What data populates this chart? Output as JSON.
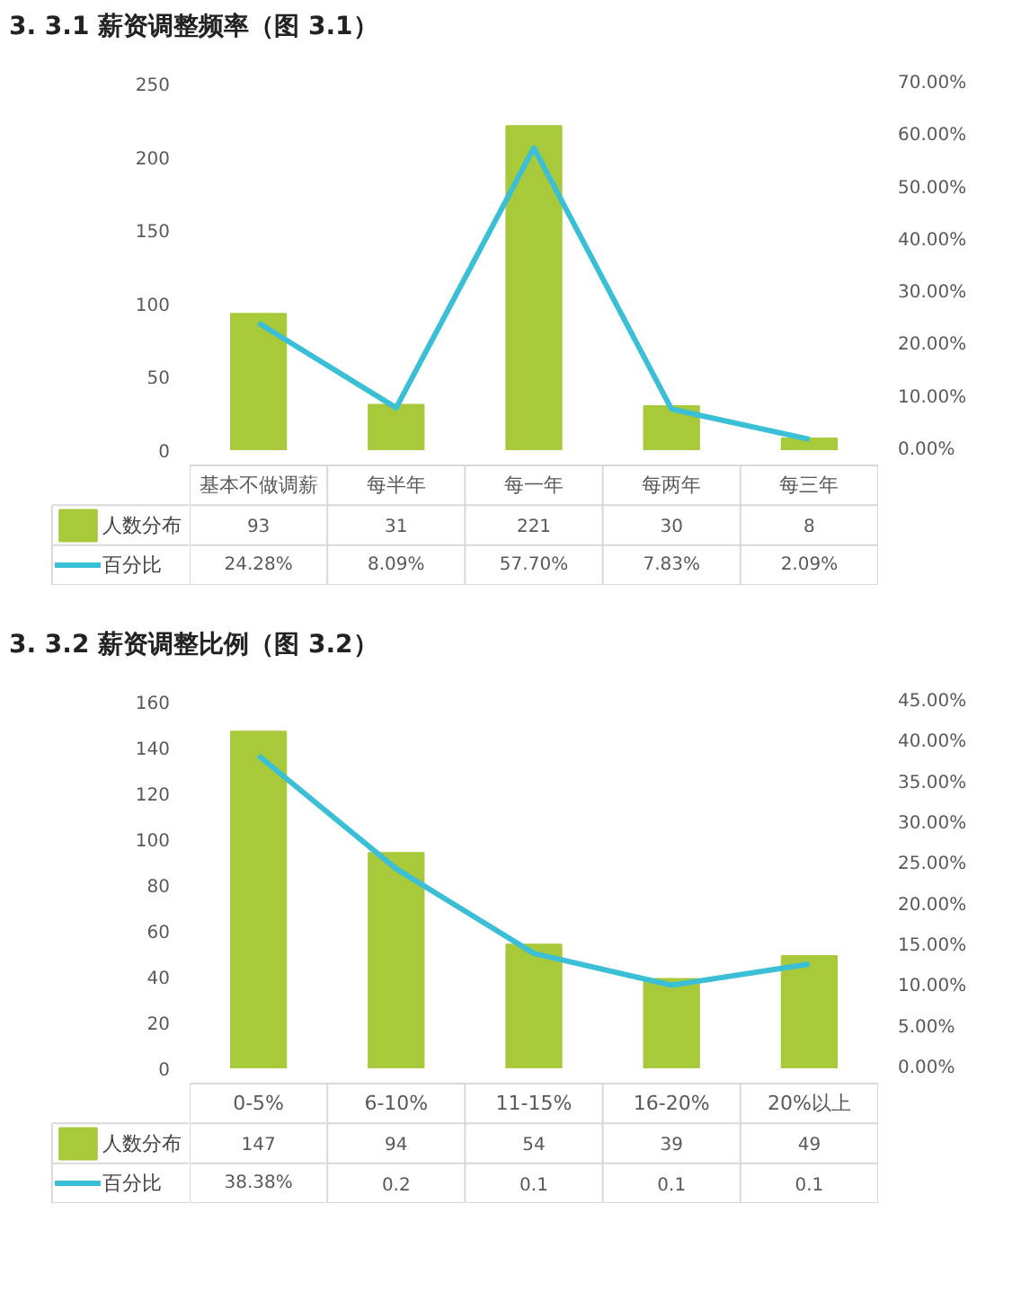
{
  "chart_data": [
    {
      "type": "bar",
      "title": "3. 3.1 薪资调整频率（图 3.1）",
      "categories": [
        "基本不做调薪",
        "每半年",
        "每一年",
        "每两年",
        "每三年"
      ],
      "legend": "bottom left",
      "series": [
        {
          "name": "人数分布",
          "color": "#a8c93a",
          "values": [
            93,
            31,
            221,
            30,
            8
          ],
          "value_labels": [
            "93",
            "31",
            "221",
            "30",
            "8"
          ]
        },
        {
          "name": "百分比",
          "type": "line",
          "axis": "y2",
          "color": "#3bbfd6",
          "values": [
            0.2428,
            0.0809,
            0.577,
            0.0783,
            0.0209
          ],
          "value_labels": [
            "24.28%",
            "8.09%",
            "57.70%",
            "7.83%",
            "2.09%"
          ]
        }
      ],
      "ylim": [
        0,
        250
      ],
      "yticks": [
        0,
        50,
        100,
        150,
        200,
        250
      ],
      "y2lim": [
        0,
        0.7
      ],
      "y2ticks": [
        {
          "value": 0,
          "label": "0.00%"
        },
        {
          "value": 0.1,
          "label": "10.00%"
        },
        {
          "value": 0.2,
          "label": "20.00%"
        },
        {
          "value": 0.3,
          "label": "30.00%"
        },
        {
          "value": 0.4,
          "label": "40.00%"
        },
        {
          "value": 0.5,
          "label": "50.00%"
        },
        {
          "value": 0.6,
          "label": "60.00%"
        },
        {
          "value": 0.7,
          "label": "70.00%"
        }
      ]
    },
    {
      "type": "bar",
      "title": "3. 3.2 薪资调整比例（图 3.2）",
      "categories": [
        "0-5%",
        "6-10%",
        "11-15%",
        "16-20%",
        "20%以上"
      ],
      "legend": "bottom left",
      "series": [
        {
          "name": "人数分布",
          "color": "#a8c93a",
          "values": [
            147,
            94,
            54,
            39,
            49
          ],
          "value_labels": [
            "147",
            "94",
            "54",
            "39",
            "49"
          ]
        },
        {
          "name": "百分比",
          "type": "line",
          "axis": "y2",
          "color": "#3bbfd6",
          "values": [
            0.3838,
            0.245,
            0.141,
            0.102,
            0.128
          ],
          "value_labels": [
            "38.38%",
            "0.2",
            "0.1",
            "0.1",
            "0.1"
          ]
        }
      ],
      "ylim": [
        0,
        160
      ],
      "yticks": [
        0,
        20,
        40,
        60,
        80,
        100,
        120,
        140,
        160
      ],
      "y2lim": [
        0,
        0.45
      ],
      "y2ticks": [
        {
          "value": 0,
          "label": "0.00%"
        },
        {
          "value": 0.05,
          "label": "5.00%"
        },
        {
          "value": 0.1,
          "label": "10.00%"
        },
        {
          "value": 0.15,
          "label": "15.00%"
        },
        {
          "value": 0.2,
          "label": "20.00%"
        },
        {
          "value": 0.25,
          "label": "25.00%"
        },
        {
          "value": 0.3,
          "label": "30.00%"
        },
        {
          "value": 0.35,
          "label": "35.00%"
        },
        {
          "value": 0.4,
          "label": "40.00%"
        },
        {
          "value": 0.45,
          "label": "45.00%"
        }
      ]
    }
  ]
}
